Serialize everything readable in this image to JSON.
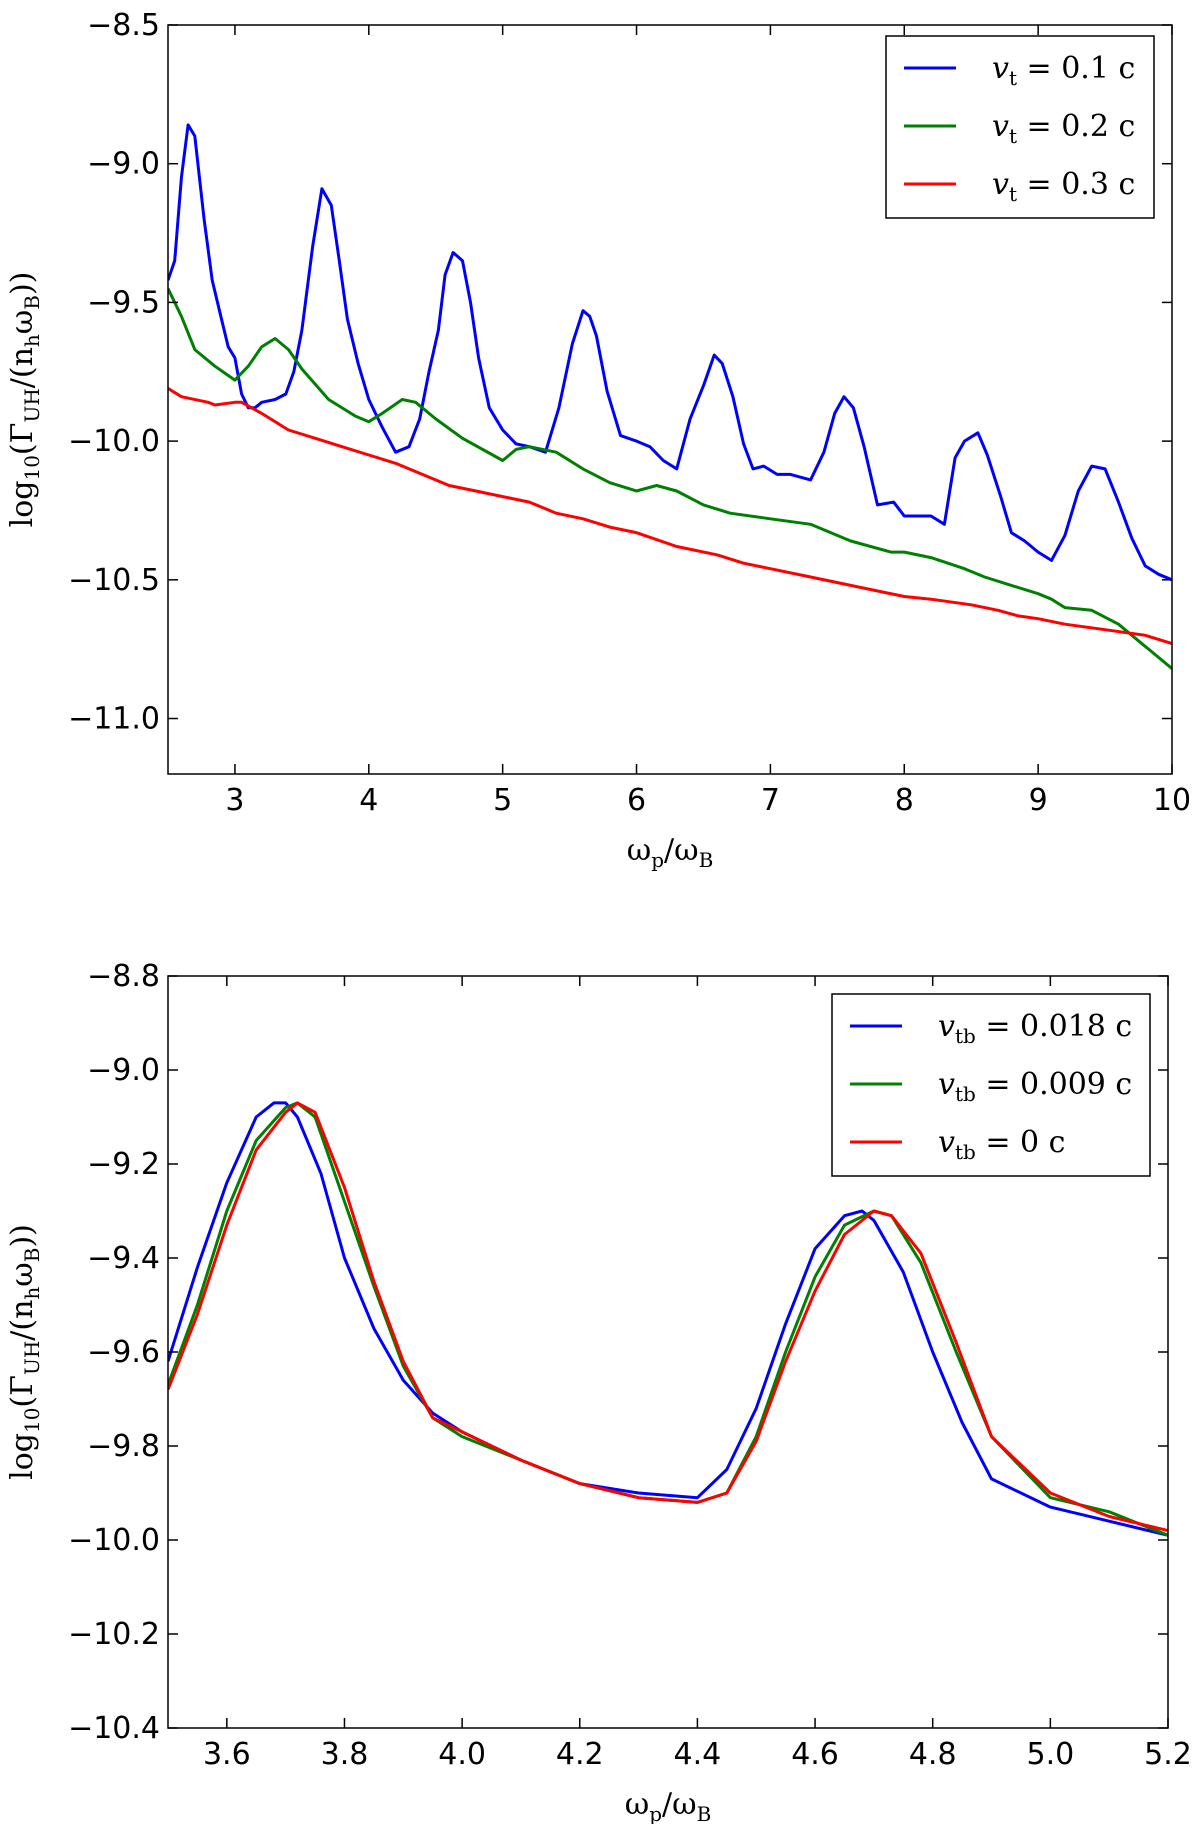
{
  "chart_data": [
    {
      "type": "line",
      "xlabel": "ω_p/ω_B",
      "ylabel": "log10(Γ_UH/(n_h ω_B))",
      "xlim": [
        2.5,
        10
      ],
      "ylim": [
        -11.2,
        -8.5
      ],
      "xticks": [
        "3",
        "4",
        "5",
        "6",
        "7",
        "8",
        "9",
        "10"
      ],
      "yticks": [
        "−8.5",
        "−9.0",
        "−9.5",
        "−10.0",
        "−10.5",
        "−11.0"
      ],
      "legend_position": "top-right",
      "series": [
        {
          "name": "v_t = 0.1 c",
          "color": "#0000ff",
          "points": [
            [
              2.5,
              -9.42
            ],
            [
              2.55,
              -9.35
            ],
            [
              2.6,
              -9.05
            ],
            [
              2.65,
              -8.86
            ],
            [
              2.7,
              -8.9
            ],
            [
              2.77,
              -9.2
            ],
            [
              2.83,
              -9.42
            ],
            [
              2.9,
              -9.56
            ],
            [
              2.95,
              -9.66
            ],
            [
              3.0,
              -9.7
            ],
            [
              3.05,
              -9.83
            ],
            [
              3.1,
              -9.88
            ],
            [
              3.15,
              -9.88
            ],
            [
              3.2,
              -9.86
            ],
            [
              3.3,
              -9.85
            ],
            [
              3.38,
              -9.83
            ],
            [
              3.44,
              -9.75
            ],
            [
              3.5,
              -9.6
            ],
            [
              3.58,
              -9.3
            ],
            [
              3.65,
              -9.09
            ],
            [
              3.72,
              -9.15
            ],
            [
              3.78,
              -9.35
            ],
            [
              3.84,
              -9.56
            ],
            [
              3.92,
              -9.72
            ],
            [
              4.0,
              -9.85
            ],
            [
              4.1,
              -9.95
            ],
            [
              4.2,
              -10.04
            ],
            [
              4.3,
              -10.02
            ],
            [
              4.38,
              -9.92
            ],
            [
              4.45,
              -9.75
            ],
            [
              4.52,
              -9.6
            ],
            [
              4.57,
              -9.4
            ],
            [
              4.63,
              -9.32
            ],
            [
              4.7,
              -9.35
            ],
            [
              4.76,
              -9.5
            ],
            [
              4.82,
              -9.7
            ],
            [
              4.9,
              -9.88
            ],
            [
              5.0,
              -9.96
            ],
            [
              5.1,
              -10.01
            ],
            [
              5.2,
              -10.02
            ],
            [
              5.32,
              -10.04
            ],
            [
              5.42,
              -9.88
            ],
            [
              5.52,
              -9.65
            ],
            [
              5.6,
              -9.53
            ],
            [
              5.65,
              -9.55
            ],
            [
              5.7,
              -9.62
            ],
            [
              5.78,
              -9.82
            ],
            [
              5.88,
              -9.98
            ],
            [
              6.0,
              -10.0
            ],
            [
              6.1,
              -10.02
            ],
            [
              6.2,
              -10.07
            ],
            [
              6.3,
              -10.1
            ],
            [
              6.4,
              -9.92
            ],
            [
              6.5,
              -9.8
            ],
            [
              6.58,
              -9.69
            ],
            [
              6.64,
              -9.72
            ],
            [
              6.72,
              -9.84
            ],
            [
              6.8,
              -10.01
            ],
            [
              6.87,
              -10.1
            ],
            [
              6.95,
              -10.09
            ],
            [
              7.05,
              -10.12
            ],
            [
              7.15,
              -10.12
            ],
            [
              7.3,
              -10.14
            ],
            [
              7.4,
              -10.04
            ],
            [
              7.48,
              -9.9
            ],
            [
              7.55,
              -9.84
            ],
            [
              7.62,
              -9.88
            ],
            [
              7.7,
              -10.02
            ],
            [
              7.8,
              -10.23
            ],
            [
              7.92,
              -10.22
            ],
            [
              8.0,
              -10.27
            ],
            [
              8.2,
              -10.27
            ],
            [
              8.3,
              -10.3
            ],
            [
              8.38,
              -10.06
            ],
            [
              8.45,
              -10.0
            ],
            [
              8.55,
              -9.97
            ],
            [
              8.62,
              -10.05
            ],
            [
              8.72,
              -10.2
            ],
            [
              8.8,
              -10.33
            ],
            [
              8.9,
              -10.36
            ],
            [
              9.0,
              -10.4
            ],
            [
              9.1,
              -10.43
            ],
            [
              9.2,
              -10.34
            ],
            [
              9.3,
              -10.18
            ],
            [
              9.4,
              -10.09
            ],
            [
              9.5,
              -10.1
            ],
            [
              9.6,
              -10.22
            ],
            [
              9.7,
              -10.35
            ],
            [
              9.8,
              -10.45
            ],
            [
              9.9,
              -10.48
            ],
            [
              10.0,
              -10.5
            ]
          ]
        },
        {
          "name": "v_t = 0.2 c",
          "color": "#008000",
          "points": [
            [
              2.5,
              -9.45
            ],
            [
              2.6,
              -9.55
            ],
            [
              2.7,
              -9.67
            ],
            [
              2.85,
              -9.73
            ],
            [
              3.0,
              -9.78
            ],
            [
              3.1,
              -9.73
            ],
            [
              3.2,
              -9.66
            ],
            [
              3.3,
              -9.63
            ],
            [
              3.4,
              -9.67
            ],
            [
              3.5,
              -9.74
            ],
            [
              3.7,
              -9.85
            ],
            [
              3.9,
              -9.91
            ],
            [
              4.0,
              -9.93
            ],
            [
              4.1,
              -9.9
            ],
            [
              4.25,
              -9.85
            ],
            [
              4.35,
              -9.86
            ],
            [
              4.5,
              -9.92
            ],
            [
              4.7,
              -9.99
            ],
            [
              5.0,
              -10.07
            ],
            [
              5.1,
              -10.03
            ],
            [
              5.2,
              -10.02
            ],
            [
              5.4,
              -10.04
            ],
            [
              5.6,
              -10.1
            ],
            [
              5.8,
              -10.15
            ],
            [
              6.0,
              -10.18
            ],
            [
              6.15,
              -10.16
            ],
            [
              6.3,
              -10.18
            ],
            [
              6.5,
              -10.23
            ],
            [
              6.7,
              -10.26
            ],
            [
              7.0,
              -10.28
            ],
            [
              7.3,
              -10.3
            ],
            [
              7.6,
              -10.36
            ],
            [
              7.9,
              -10.4
            ],
            [
              8.0,
              -10.4
            ],
            [
              8.2,
              -10.42
            ],
            [
              8.45,
              -10.46
            ],
            [
              8.6,
              -10.49
            ],
            [
              8.8,
              -10.52
            ],
            [
              9.0,
              -10.55
            ],
            [
              9.1,
              -10.57
            ],
            [
              9.2,
              -10.6
            ],
            [
              9.4,
              -10.61
            ],
            [
              9.6,
              -10.66
            ],
            [
              9.7,
              -10.7
            ],
            [
              9.85,
              -10.76
            ],
            [
              10.0,
              -10.82
            ]
          ]
        },
        {
          "name": "v_t = 0.3 c",
          "color": "#ff0000",
          "points": [
            [
              2.5,
              -9.81
            ],
            [
              2.6,
              -9.84
            ],
            [
              2.8,
              -9.86
            ],
            [
              2.85,
              -9.87
            ],
            [
              3.0,
              -9.86
            ],
            [
              3.05,
              -9.86
            ],
            [
              3.2,
              -9.9
            ],
            [
              3.4,
              -9.96
            ],
            [
              3.6,
              -9.99
            ],
            [
              3.8,
              -10.02
            ],
            [
              4.0,
              -10.05
            ],
            [
              4.2,
              -10.08
            ],
            [
              4.4,
              -10.12
            ],
            [
              4.6,
              -10.16
            ],
            [
              4.8,
              -10.18
            ],
            [
              5.0,
              -10.2
            ],
            [
              5.2,
              -10.22
            ],
            [
              5.4,
              -10.26
            ],
            [
              5.6,
              -10.28
            ],
            [
              5.8,
              -10.31
            ],
            [
              6.0,
              -10.33
            ],
            [
              6.3,
              -10.38
            ],
            [
              6.6,
              -10.41
            ],
            [
              6.8,
              -10.44
            ],
            [
              7.0,
              -10.46
            ],
            [
              7.3,
              -10.49
            ],
            [
              7.6,
              -10.52
            ],
            [
              8.0,
              -10.56
            ],
            [
              8.2,
              -10.57
            ],
            [
              8.5,
              -10.59
            ],
            [
              8.7,
              -10.61
            ],
            [
              8.85,
              -10.63
            ],
            [
              9.0,
              -10.64
            ],
            [
              9.2,
              -10.66
            ],
            [
              9.5,
              -10.68
            ],
            [
              9.8,
              -10.7
            ],
            [
              10.0,
              -10.73
            ]
          ]
        }
      ]
    },
    {
      "type": "line",
      "xlabel": "ω_p/ω_B",
      "ylabel": "log10(Γ_UH/(n_h ω_B))",
      "xlim": [
        3.5,
        5.2
      ],
      "ylim": [
        -10.4,
        -8.8
      ],
      "xticks": [
        "3.6",
        "3.8",
        "4.0",
        "4.2",
        "4.4",
        "4.6",
        "4.8",
        "5.0",
        "5.2"
      ],
      "yticks": [
        "−8.8",
        "−9.0",
        "−9.2",
        "−9.4",
        "−9.6",
        "−9.8",
        "−10.0",
        "−10.2",
        "−10.4"
      ],
      "legend_position": "top-right",
      "series": [
        {
          "name": "v_tb = 0.018 c",
          "color": "#0000ff",
          "points": [
            [
              3.5,
              -9.62
            ],
            [
              3.55,
              -9.42
            ],
            [
              3.6,
              -9.24
            ],
            [
              3.65,
              -9.1
            ],
            [
              3.68,
              -9.07
            ],
            [
              3.7,
              -9.07
            ],
            [
              3.72,
              -9.1
            ],
            [
              3.76,
              -9.22
            ],
            [
              3.8,
              -9.4
            ],
            [
              3.85,
              -9.55
            ],
            [
              3.9,
              -9.66
            ],
            [
              3.95,
              -9.73
            ],
            [
              4.0,
              -9.77
            ],
            [
              4.1,
              -9.83
            ],
            [
              4.2,
              -9.88
            ],
            [
              4.3,
              -9.9
            ],
            [
              4.4,
              -9.91
            ],
            [
              4.45,
              -9.85
            ],
            [
              4.5,
              -9.72
            ],
            [
              4.55,
              -9.54
            ],
            [
              4.6,
              -9.38
            ],
            [
              4.65,
              -9.31
            ],
            [
              4.68,
              -9.3
            ],
            [
              4.7,
              -9.32
            ],
            [
              4.75,
              -9.43
            ],
            [
              4.8,
              -9.6
            ],
            [
              4.85,
              -9.75
            ],
            [
              4.9,
              -9.87
            ],
            [
              5.0,
              -9.93
            ],
            [
              5.1,
              -9.96
            ],
            [
              5.2,
              -9.99
            ]
          ]
        },
        {
          "name": "v_tb = 0.009 c",
          "color": "#008000",
          "points": [
            [
              3.5,
              -9.67
            ],
            [
              3.55,
              -9.5
            ],
            [
              3.6,
              -9.3
            ],
            [
              3.65,
              -9.15
            ],
            [
              3.7,
              -9.08
            ],
            [
              3.72,
              -9.07
            ],
            [
              3.75,
              -9.1
            ],
            [
              3.8,
              -9.28
            ],
            [
              3.85,
              -9.46
            ],
            [
              3.9,
              -9.63
            ],
            [
              3.95,
              -9.74
            ],
            [
              4.0,
              -9.78
            ],
            [
              4.1,
              -9.83
            ],
            [
              4.2,
              -9.88
            ],
            [
              4.3,
              -9.91
            ],
            [
              4.4,
              -9.92
            ],
            [
              4.45,
              -9.9
            ],
            [
              4.5,
              -9.78
            ],
            [
              4.55,
              -9.6
            ],
            [
              4.6,
              -9.44
            ],
            [
              4.65,
              -9.33
            ],
            [
              4.7,
              -9.3
            ],
            [
              4.73,
              -9.31
            ],
            [
              4.78,
              -9.41
            ],
            [
              4.84,
              -9.6
            ],
            [
              4.9,
              -9.78
            ],
            [
              5.0,
              -9.91
            ],
            [
              5.1,
              -9.94
            ],
            [
              5.2,
              -9.99
            ]
          ]
        },
        {
          "name": "v_tb = 0 c",
          "color": "#ff0000",
          "points": [
            [
              3.5,
              -9.68
            ],
            [
              3.55,
              -9.52
            ],
            [
              3.6,
              -9.33
            ],
            [
              3.65,
              -9.17
            ],
            [
              3.7,
              -9.09
            ],
            [
              3.72,
              -9.07
            ],
            [
              3.75,
              -9.09
            ],
            [
              3.8,
              -9.25
            ],
            [
              3.85,
              -9.45
            ],
            [
              3.9,
              -9.62
            ],
            [
              3.95,
              -9.74
            ],
            [
              4.0,
              -9.77
            ],
            [
              4.1,
              -9.83
            ],
            [
              4.2,
              -9.88
            ],
            [
              4.3,
              -9.91
            ],
            [
              4.4,
              -9.92
            ],
            [
              4.45,
              -9.9
            ],
            [
              4.5,
              -9.79
            ],
            [
              4.55,
              -9.62
            ],
            [
              4.6,
              -9.47
            ],
            [
              4.65,
              -9.35
            ],
            [
              4.7,
              -9.3
            ],
            [
              4.73,
              -9.31
            ],
            [
              4.78,
              -9.39
            ],
            [
              4.84,
              -9.58
            ],
            [
              4.9,
              -9.78
            ],
            [
              5.0,
              -9.9
            ],
            [
              5.1,
              -9.95
            ],
            [
              5.2,
              -9.98
            ]
          ]
        }
      ]
    }
  ]
}
